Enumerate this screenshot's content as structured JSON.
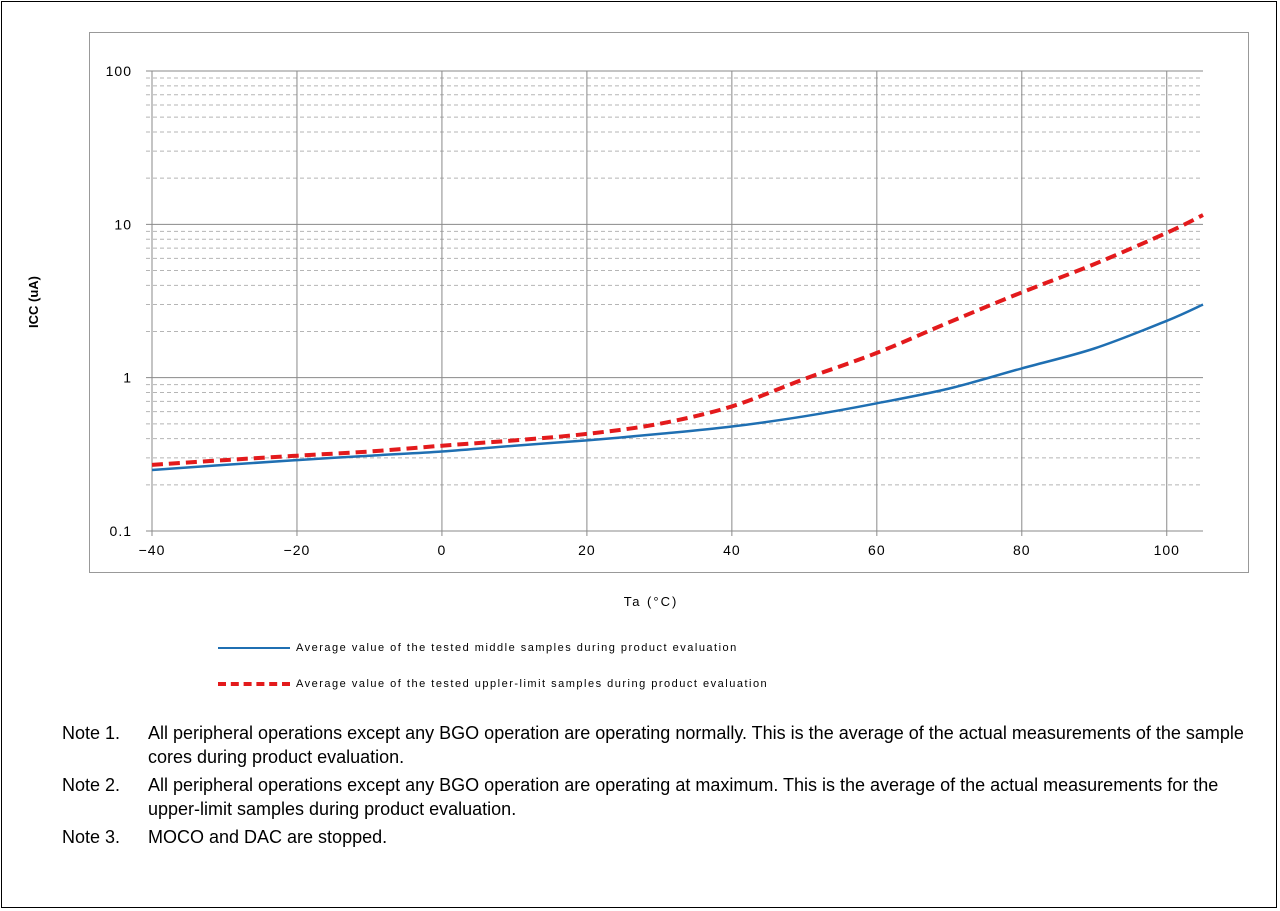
{
  "chart_data": {
    "type": "line",
    "xlabel": "Ta (°C)",
    "ylabel": "ICC (uA)",
    "xlim": [
      -40,
      105
    ],
    "ylim": [
      0.1,
      100
    ],
    "yscale": "log",
    "x_ticks": [
      "−40",
      "−20",
      "0",
      "20",
      "40",
      "60",
      "80",
      "100"
    ],
    "y_ticks": [
      "0.1",
      "1",
      "10",
      "100"
    ],
    "grid": true,
    "legend_position": "bottom",
    "series": [
      {
        "name": "Average value of the tested middle samples during product evaluation",
        "style": "solid",
        "color": "#1f6fb2",
        "x": [
          -40,
          -30,
          -20,
          -10,
          0,
          10,
          20,
          30,
          40,
          50,
          60,
          70,
          80,
          90,
          100,
          105
        ],
        "y": [
          0.25,
          0.27,
          0.29,
          0.31,
          0.33,
          0.36,
          0.39,
          0.43,
          0.48,
          0.56,
          0.68,
          0.85,
          1.15,
          1.55,
          2.35,
          3.0
        ]
      },
      {
        "name": "Average value of the tested uppler-limit samples during product evaluation",
        "style": "dashed",
        "color": "#e31a1c",
        "x": [
          -40,
          -30,
          -20,
          -10,
          0,
          10,
          20,
          30,
          40,
          50,
          60,
          70,
          80,
          90,
          100,
          105
        ],
        "y": [
          0.27,
          0.29,
          0.31,
          0.33,
          0.36,
          0.39,
          0.43,
          0.5,
          0.65,
          0.98,
          1.45,
          2.3,
          3.6,
          5.5,
          8.8,
          11.5
        ]
      }
    ]
  },
  "notes": [
    {
      "label": "Note 1.",
      "text": "All peripheral operations except any BGO operation are operating normally. This is the average of the actual measurements of the sample cores during product evaluation."
    },
    {
      "label": "Note 2.",
      "text": "All peripheral operations except any BGO operation are operating at maximum. This is the average of the actual measurements for the upper-limit samples during product evaluation."
    },
    {
      "label": "Note 3.",
      "text": "MOCO and DAC are stopped."
    }
  ]
}
